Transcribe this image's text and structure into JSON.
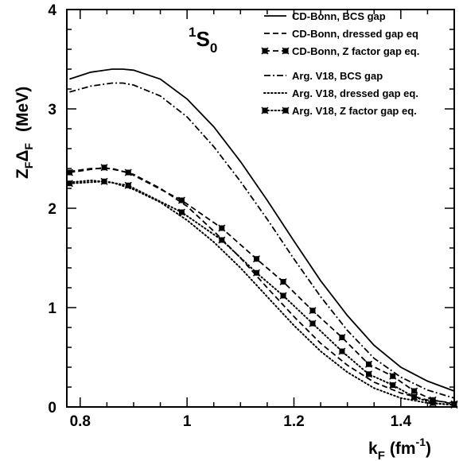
{
  "chart_data": {
    "type": "line",
    "xlabel": {
      "main": "k",
      "sub": "F",
      "unit_open": "(fm",
      "unit_sup": "-1",
      "unit_close": ")"
    },
    "ylabel": {
      "z": "Z",
      "zsub": "F",
      "delta": "Δ",
      "dsub": "F",
      "unit": "(MeV)"
    },
    "annotation": {
      "sup": "1",
      "main": "S",
      "sub": "0"
    },
    "xlim": [
      0.775,
      1.5
    ],
    "ylim": [
      0,
      4
    ],
    "x_ticks": [
      0.8,
      1.0,
      1.2,
      1.4
    ],
    "x_tick_labels": [
      "0.8",
      "1",
      "1.2",
      "1.4"
    ],
    "y_ticks": [
      0,
      1,
      2,
      3,
      4
    ],
    "y_tick_labels": [
      "0",
      "1",
      "2",
      "3",
      "4"
    ],
    "legend_position": "top-right",
    "series": [
      {
        "name": "CD-Bonn, BCS gap",
        "style": "solid",
        "markers": false,
        "x": [
          0.78,
          0.82,
          0.86,
          0.88,
          0.9,
          0.95,
          1.0,
          1.05,
          1.1,
          1.15,
          1.2,
          1.25,
          1.3,
          1.35,
          1.4,
          1.45,
          1.5
        ],
        "y": [
          3.3,
          3.37,
          3.4,
          3.4,
          3.39,
          3.3,
          3.1,
          2.82,
          2.47,
          2.08,
          1.67,
          1.27,
          0.92,
          0.62,
          0.4,
          0.26,
          0.16
        ]
      },
      {
        "name": "CD-Bonn, dressed gap eq",
        "style": "dashed",
        "markers": false,
        "x": [
          0.78,
          0.82,
          0.86,
          0.9,
          0.95,
          1.0,
          1.05,
          1.1,
          1.15,
          1.2,
          1.25,
          1.3,
          1.35,
          1.4,
          1.45,
          1.5
        ],
        "y": [
          2.37,
          2.4,
          2.4,
          2.34,
          2.2,
          2.02,
          1.77,
          1.5,
          1.2,
          0.91,
          0.64,
          0.42,
          0.25,
          0.14,
          0.07,
          0.04
        ]
      },
      {
        "name": "CD-Bonn, Z factor gap eq.",
        "style": "dashed",
        "markers": true,
        "x": [
          0.78,
          0.845,
          0.89,
          0.99,
          1.065,
          1.13,
          1.18,
          1.235,
          1.29,
          1.34,
          1.385,
          1.425,
          1.46,
          1.5
        ],
        "y": [
          2.36,
          2.41,
          2.36,
          2.08,
          1.8,
          1.49,
          1.26,
          0.97,
          0.7,
          0.43,
          0.31,
          0.16,
          0.07,
          0.03
        ]
      },
      {
        "name": "Arg. V18, BCS gap",
        "style": "dashdot",
        "markers": false,
        "x": [
          0.78,
          0.82,
          0.86,
          0.88,
          0.9,
          0.95,
          1.0,
          1.05,
          1.1,
          1.15,
          1.2,
          1.25,
          1.3,
          1.35,
          1.4,
          1.45,
          1.5
        ],
        "y": [
          3.17,
          3.23,
          3.26,
          3.26,
          3.24,
          3.13,
          2.92,
          2.62,
          2.27,
          1.89,
          1.49,
          1.11,
          0.77,
          0.49,
          0.3,
          0.17,
          0.09
        ]
      },
      {
        "name": "Arg. V18, dressed gap eq.",
        "style": "dotted",
        "markers": false,
        "x": [
          0.78,
          0.82,
          0.86,
          0.9,
          0.95,
          1.0,
          1.05,
          1.1,
          1.15,
          1.2,
          1.25,
          1.3,
          1.35,
          1.4,
          1.45,
          1.5
        ],
        "y": [
          2.26,
          2.28,
          2.26,
          2.19,
          2.06,
          1.88,
          1.66,
          1.4,
          1.11,
          0.82,
          0.56,
          0.35,
          0.19,
          0.09,
          0.04,
          0.02
        ]
      },
      {
        "name": "Arg. V18, Z factor gap eq.",
        "style": "dotted",
        "markers": true,
        "x": [
          0.78,
          0.845,
          0.89,
          0.99,
          1.065,
          1.13,
          1.18,
          1.235,
          1.29,
          1.34,
          1.385,
          1.425,
          1.46,
          1.5
        ],
        "y": [
          2.25,
          2.27,
          2.23,
          1.96,
          1.68,
          1.35,
          1.12,
          0.84,
          0.56,
          0.33,
          0.22,
          0.1,
          0.04,
          0.02
        ]
      }
    ]
  }
}
